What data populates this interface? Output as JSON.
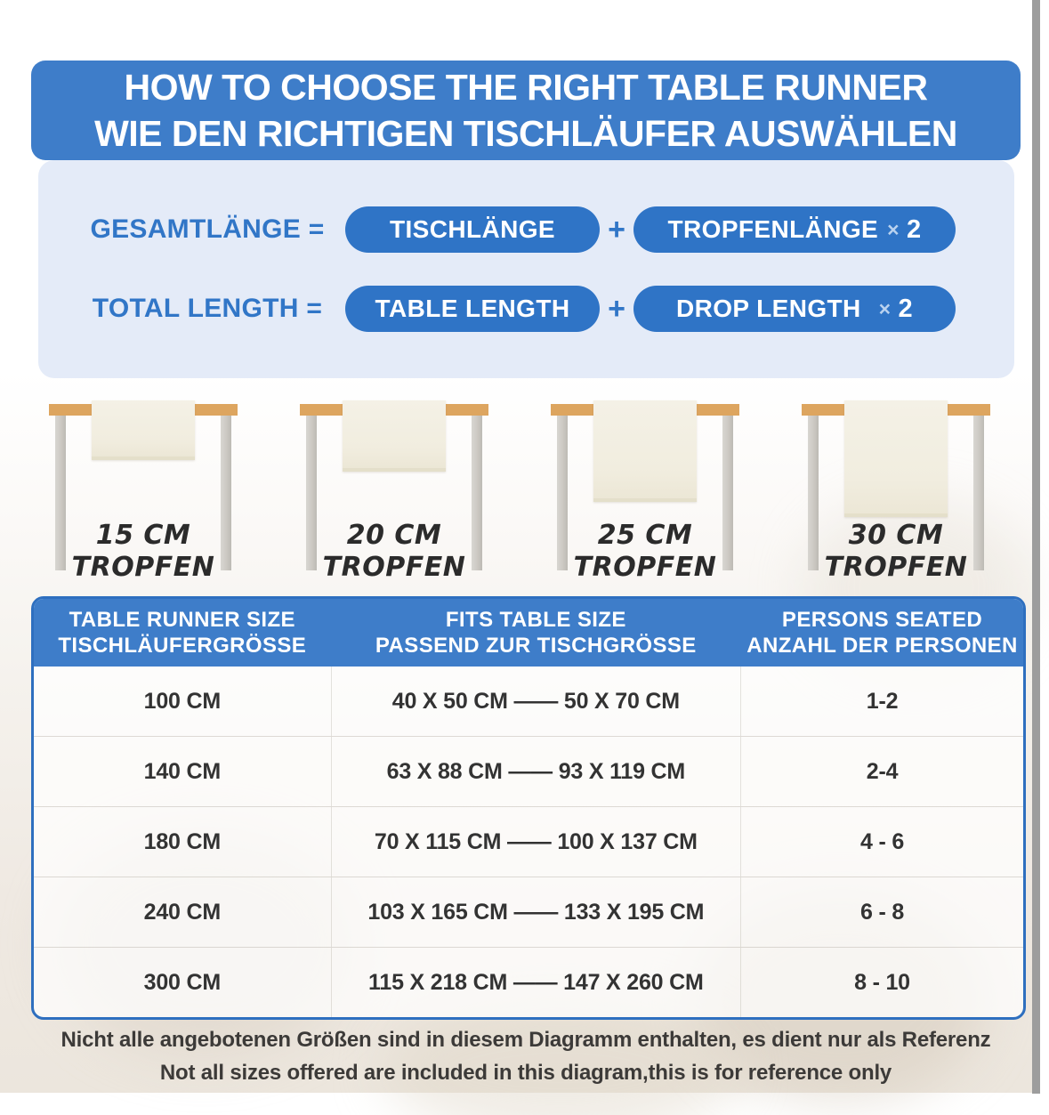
{
  "banner": {
    "title_en": "HOW TO CHOOSE THE RIGHT TABLE RUNNER",
    "title_de": "WIE DEN RICHTIGEN TISCHLÄUFER AUSWÄHLEN"
  },
  "formula": {
    "rows": [
      {
        "label": "GESAMTLÄNGE =",
        "operand1": "TISCHLÄNGE",
        "plus": "+",
        "operand2": "TROPFENLÄNGE",
        "times": "×",
        "factor": "2"
      },
      {
        "label": "TOTAL LENGTH =",
        "operand1": "TABLE LENGTH",
        "plus": "+",
        "operand2": "DROP LENGTH",
        "times": "×",
        "factor": "2"
      }
    ]
  },
  "drop_illustrations": [
    {
      "size": "15 CM",
      "word": "TROPFEN"
    },
    {
      "size": "20 CM",
      "word": "TROPFEN"
    },
    {
      "size": "25 CM",
      "word": "TROPFEN"
    },
    {
      "size": "30 CM",
      "word": "TROPFEN"
    }
  ],
  "size_table": {
    "headers": [
      {
        "en": "TABLE RUNNER SIZE",
        "de": "TISCHLÄUFERGRÖSSE"
      },
      {
        "en": "FITS TABLE SIZE",
        "de": "PASSEND ZUR TISCHGRÖSSE"
      },
      {
        "en": "PERSONS SEATED",
        "de": "ANZAHL DER PERSONEN"
      }
    ],
    "rows": [
      {
        "runner_size": "100 CM",
        "fits": "40 X 50 CM —— 50 X 70 CM",
        "persons": "1-2"
      },
      {
        "runner_size": "140 CM",
        "fits": "63 X 88 CM —— 93 X 119 CM",
        "persons": "2-4"
      },
      {
        "runner_size": "180 CM",
        "fits": "70 X 115 CM —— 100 X 137 CM",
        "persons": "4 - 6"
      },
      {
        "runner_size": "240 CM",
        "fits": "103 X 165 CM —— 133 X 195 CM",
        "persons": "6 - 8"
      },
      {
        "runner_size": "300 CM",
        "fits": "115 X 218 CM —— 147 X 260 CM",
        "persons": "8 - 10"
      }
    ]
  },
  "footer": {
    "line_de": "Nicht alle angebotenen Größen sind in diesem Diagramm enthalten, es dient nur als Referenz",
    "line_en": "Not all sizes offered are included in this diagram,this is for reference only"
  },
  "colors": {
    "banner_blue": "#3E7DC9",
    "pill_blue": "#2F74C6",
    "panel_light_blue": "#E4EBF8",
    "formula_text_blue": "#3176C7",
    "table_border_blue": "#2E6FBF",
    "tabletop_tan": "#DDA55F",
    "leg_gray": "#CCC9C3",
    "runner_cream": "#F2EFE3",
    "label_black": "#2B2B2B",
    "body_text": "#333333",
    "edge_strip_gray": "#9D9D9D"
  }
}
